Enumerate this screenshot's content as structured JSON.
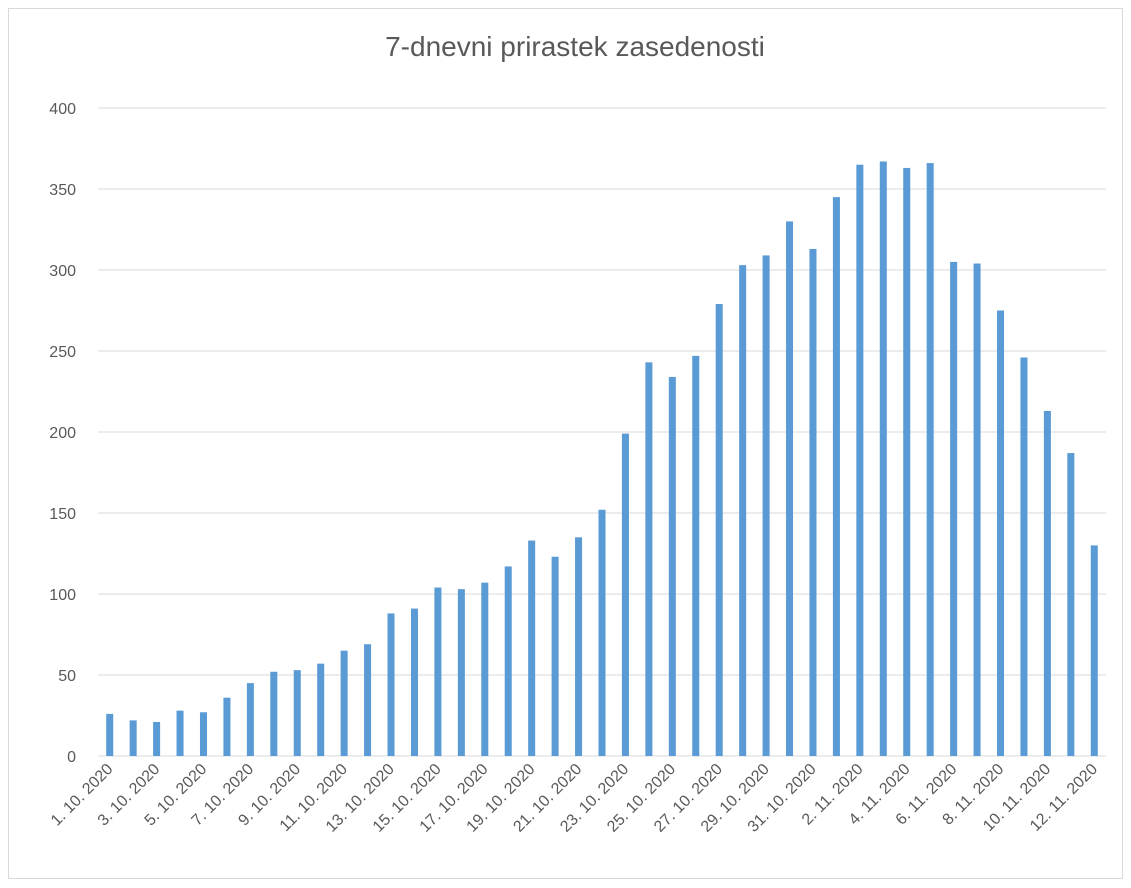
{
  "chart_data": {
    "type": "bar",
    "title": "7-dnevni prirastek zasedenosti",
    "categories": [
      "1. 10. 2020",
      null,
      "3. 10. 2020",
      null,
      "5. 10. 2020",
      null,
      "7. 10. 2020",
      null,
      "9. 10. 2020",
      null,
      "11. 10. 2020",
      null,
      "13. 10. 2020",
      null,
      "15. 10. 2020",
      null,
      "17. 10. 2020",
      null,
      "19. 10. 2020",
      null,
      "21. 10. 2020",
      null,
      "23. 10. 2020",
      null,
      "25. 10. 2020",
      null,
      "27. 10. 2020",
      null,
      "29. 10. 2020",
      null,
      "31. 10. 2020",
      null,
      "2. 11. 2020",
      null,
      "4. 11. 2020",
      null,
      "6. 11. 2020",
      null,
      "8. 11. 2020",
      null,
      "10. 11. 2020",
      null,
      "12. 11. 2020"
    ],
    "values": [
      26,
      22,
      21,
      28,
      27,
      36,
      45,
      52,
      53,
      57,
      65,
      69,
      88,
      91,
      104,
      103,
      107,
      117,
      133,
      123,
      135,
      152,
      199,
      243,
      234,
      247,
      279,
      303,
      309,
      330,
      313,
      345,
      365,
      367,
      363,
      366,
      305,
      304,
      275,
      246,
      213,
      187,
      130
    ],
    "color": "#5b9bd5",
    "ylim": [
      0,
      400
    ],
    "yticks": [
      0,
      50,
      100,
      150,
      200,
      250,
      300,
      350,
      400
    ],
    "grid": true
  }
}
